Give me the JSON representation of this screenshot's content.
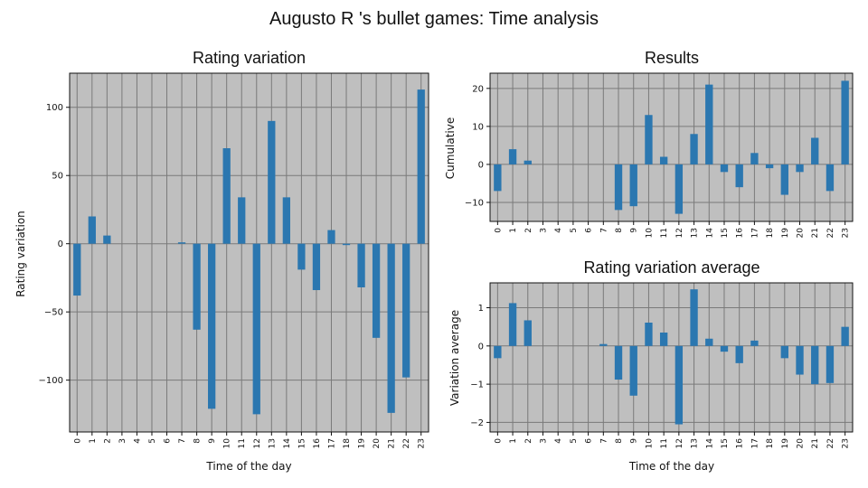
{
  "suptitle": "Augusto R 's bullet games: Time analysis",
  "colors": {
    "bar": "#2b77b0",
    "panel_bg": "#bfbfbf",
    "grid": "#7a7a7a",
    "zero_line": "#7a7a7a"
  },
  "chart_data": [
    {
      "id": "rating",
      "type": "bar",
      "title": "Rating variation",
      "xlabel": "Time of the day",
      "ylabel": "Rating variation",
      "categories": [
        "0",
        "1",
        "2",
        "3",
        "4",
        "5",
        "6",
        "7",
        "8",
        "9",
        "10",
        "11",
        "12",
        "13",
        "14",
        "15",
        "16",
        "17",
        "18",
        "19",
        "20",
        "21",
        "22",
        "23"
      ],
      "values": [
        -38,
        20,
        6,
        0,
        0,
        0,
        0,
        1,
        -63,
        -121,
        70,
        34,
        -125,
        90,
        34,
        -19,
        -34,
        10,
        -1,
        -32,
        -69,
        -124,
        -98,
        113
      ],
      "ylim": [
        -138,
        125
      ],
      "yticks": [
        -100,
        -50,
        0,
        50,
        100
      ],
      "ytick_labels": [
        "−100",
        "−50",
        "0",
        "50",
        "100"
      ],
      "grid": true
    },
    {
      "id": "results",
      "type": "bar",
      "title": "Results",
      "xlabel": "",
      "ylabel": "Cumulative",
      "categories": [
        "0",
        "1",
        "2",
        "3",
        "4",
        "5",
        "6",
        "7",
        "8",
        "9",
        "10",
        "11",
        "12",
        "13",
        "14",
        "15",
        "16",
        "17",
        "18",
        "19",
        "20",
        "21",
        "22",
        "23"
      ],
      "values": [
        -7,
        4,
        1,
        0,
        0,
        0,
        0,
        0,
        -12,
        -11,
        13,
        2,
        -13,
        8,
        21,
        -2,
        -6,
        3,
        -1,
        -8,
        -2,
        7,
        -7,
        22
      ],
      "ylim": [
        -15,
        24
      ],
      "yticks": [
        -10,
        0,
        10,
        20
      ],
      "ytick_labels": [
        "−10",
        "0",
        "10",
        "20"
      ],
      "grid": true
    },
    {
      "id": "average",
      "type": "bar",
      "title": "Rating variation average",
      "xlabel": "Time of the day",
      "ylabel": "Variation average",
      "categories": [
        "0",
        "1",
        "2",
        "3",
        "4",
        "5",
        "6",
        "7",
        "8",
        "9",
        "10",
        "11",
        "12",
        "13",
        "14",
        "15",
        "16",
        "17",
        "18",
        "19",
        "20",
        "21",
        "22",
        "23"
      ],
      "values": [
        -0.32,
        1.12,
        0.67,
        0,
        0,
        0,
        0,
        0.05,
        -0.88,
        -1.3,
        0.61,
        0.35,
        -2.05,
        1.48,
        0.19,
        -0.15,
        -0.45,
        0.14,
        0,
        -0.32,
        -0.75,
        -1.0,
        -0.97,
        0.5
      ],
      "ylim": [
        -2.25,
        1.65
      ],
      "yticks": [
        -2,
        -1,
        0,
        1
      ],
      "ytick_labels": [
        "−2",
        "−1",
        "0",
        "1"
      ],
      "grid": true
    }
  ]
}
